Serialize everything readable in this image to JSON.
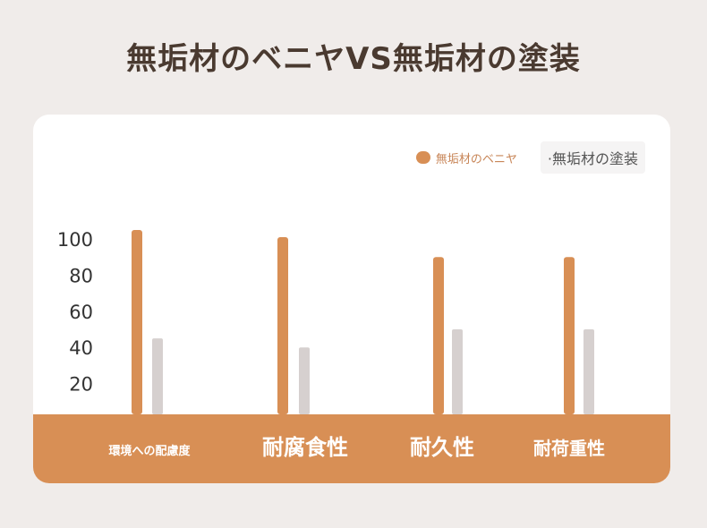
{
  "title": "無垢材のベニヤVS無垢材の塗装",
  "colors": {
    "series_a": "#d88f55",
    "series_b": "#d6d0cf",
    "band": "#d88f55"
  },
  "chart_data": {
    "type": "bar",
    "title": "無垢材のベニヤVS無垢材の塗装",
    "categories": [
      "環境への配慮度",
      "耐腐食性",
      "耐久性",
      "耐荷重性"
    ],
    "series": [
      {
        "name": "無垢材のベニヤ",
        "values": [
          102,
          98,
          87,
          87
        ]
      },
      {
        "name": "無垢材の塗装",
        "values": [
          42,
          37,
          47,
          47
        ]
      }
    ],
    "yticks": [
      100,
      80,
      60,
      40,
      20
    ],
    "ylim": [
      0,
      110
    ],
    "grid": false,
    "legend": "top-right"
  }
}
